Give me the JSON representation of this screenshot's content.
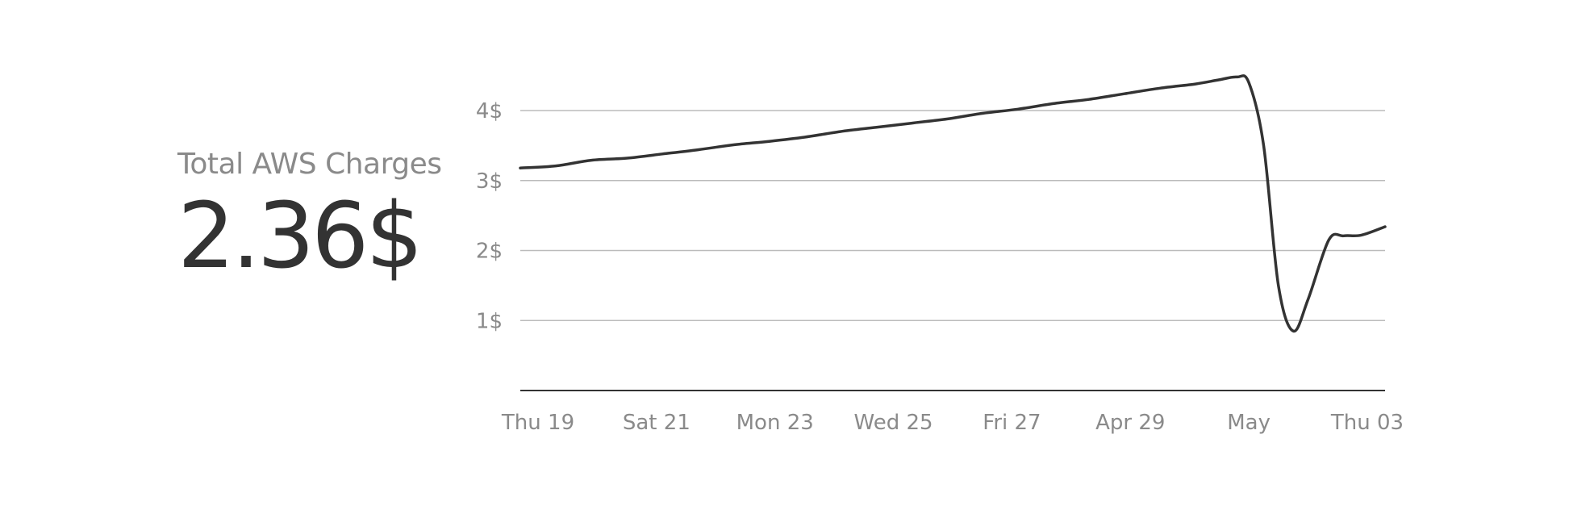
{
  "summary": {
    "label": "Total AWS Charges",
    "value": "2.36$"
  },
  "chart_data": {
    "type": "line",
    "title": "",
    "xlabel": "",
    "ylabel": "",
    "grid": true,
    "ylim": [
      0,
      4.6
    ],
    "line_color": "#333333",
    "grid_color": "#bbbbbb",
    "axis_color": "#333333",
    "yticks": [
      {
        "value": 1,
        "label": "1$"
      },
      {
        "value": 2,
        "label": "2$"
      },
      {
        "value": 3,
        "label": "3$"
      },
      {
        "value": 4,
        "label": "4$"
      }
    ],
    "xticks": [
      {
        "value": 0.3,
        "label": "Thu 19"
      },
      {
        "value": 2.3,
        "label": "Sat 21"
      },
      {
        "value": 4.3,
        "label": "Mon 23"
      },
      {
        "value": 6.3,
        "label": "Wed 25"
      },
      {
        "value": 8.3,
        "label": "Fri 27"
      },
      {
        "value": 10.3,
        "label": "Apr 29"
      },
      {
        "value": 12.3,
        "label": "May"
      },
      {
        "value": 14.3,
        "label": "Thu 03"
      }
    ],
    "xlim": [
      0,
      14.6
    ],
    "series": [
      {
        "values": [
          [
            0,
            3.18
          ],
          [
            0.6,
            3.21
          ],
          [
            1.2,
            3.29
          ],
          [
            1.8,
            3.32
          ],
          [
            2.4,
            3.38
          ],
          [
            3.0,
            3.44
          ],
          [
            3.6,
            3.51
          ],
          [
            4.2,
            3.56
          ],
          [
            4.8,
            3.62
          ],
          [
            5.4,
            3.7
          ],
          [
            6.0,
            3.76
          ],
          [
            6.6,
            3.82
          ],
          [
            7.2,
            3.88
          ],
          [
            7.8,
            3.96
          ],
          [
            8.4,
            4.02
          ],
          [
            9.0,
            4.1
          ],
          [
            9.6,
            4.16
          ],
          [
            10.2,
            4.24
          ],
          [
            10.8,
            4.32
          ],
          [
            11.4,
            4.38
          ],
          [
            11.8,
            4.44
          ],
          [
            12.1,
            4.48
          ],
          [
            12.3,
            4.4
          ],
          [
            12.55,
            3.5
          ],
          [
            12.8,
            1.5
          ],
          [
            13.05,
            0.85
          ],
          [
            13.3,
            1.3
          ],
          [
            13.65,
            2.15
          ],
          [
            13.9,
            2.21
          ],
          [
            14.2,
            2.22
          ],
          [
            14.6,
            2.34
          ]
        ]
      }
    ]
  }
}
